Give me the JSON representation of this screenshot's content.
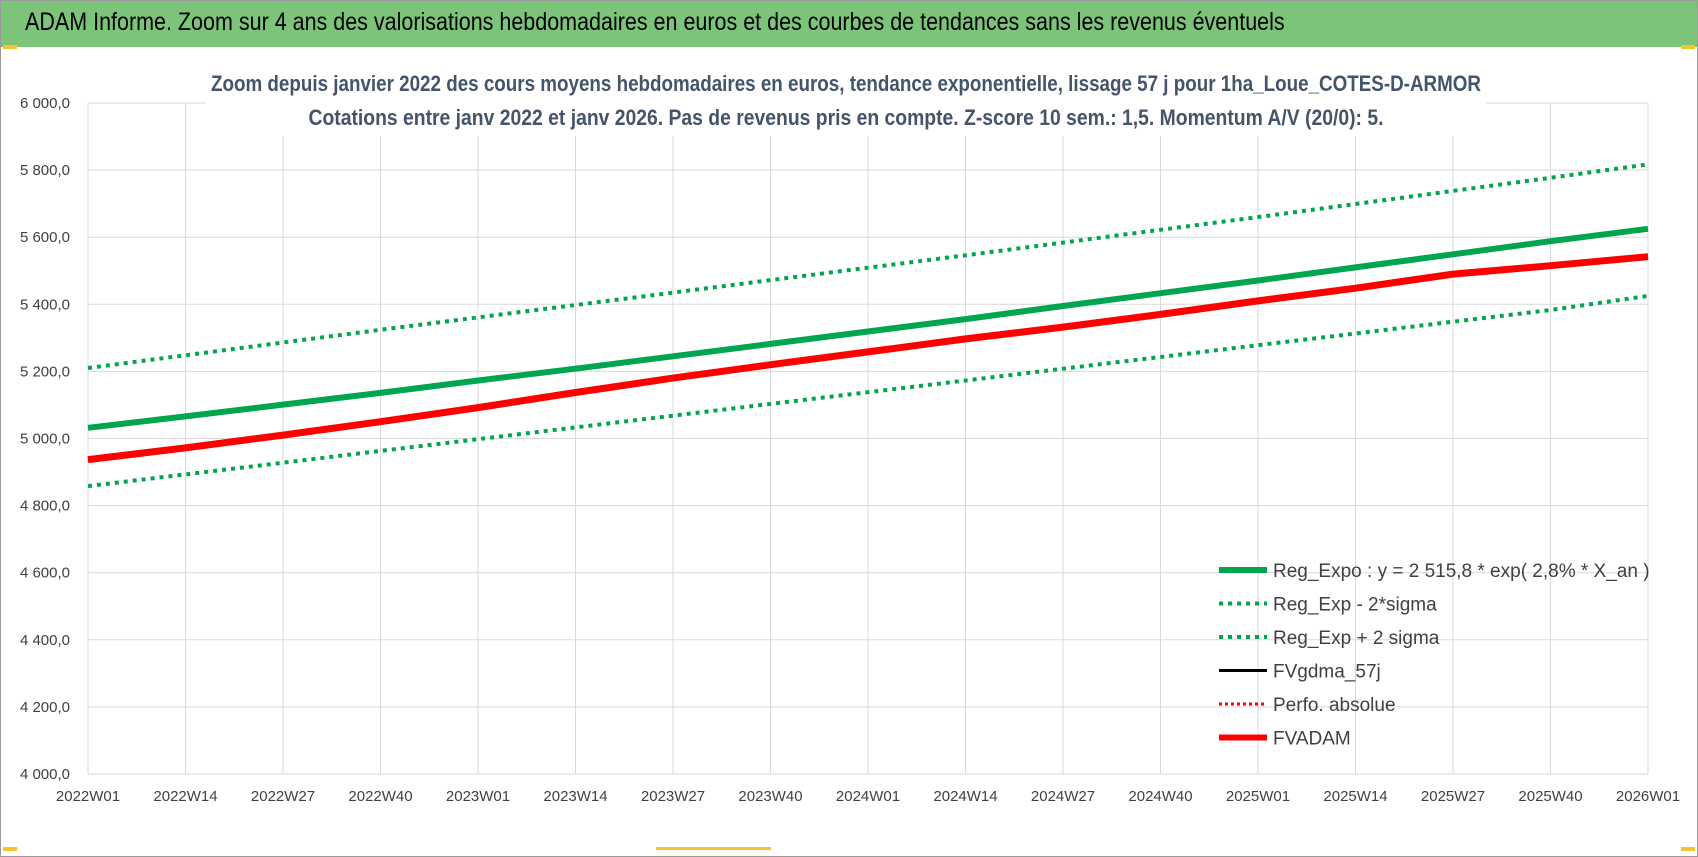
{
  "banner": {
    "title": "ADAM Informe. Zoom sur 4 ans des valorisations hebdomadaires en euros et des courbes de tendances sans les revenus éventuels"
  },
  "colors": {
    "banner_bg": "#7dc47b",
    "title_text": "#44546a",
    "green": "#00a550",
    "red": "#ff0000",
    "black": "#000000",
    "grid": "#d9d9d9"
  },
  "chart_data": {
    "type": "line",
    "title": "Zoom depuis janvier 2022 des cours moyens hebdomadaires en euros, tendance exponentielle, lissage 57 j pour 1ha_Loue_COTES-D-ARMOR",
    "subtitle": "Cotations entre janv 2022 et janv 2026. Pas de revenus pris en compte. Z-score 10 sem.: 1,5. Momentum A/V (20/0): 5.",
    "categories": [
      "2022W01",
      "2022W14",
      "2022W27",
      "2022W40",
      "2023W01",
      "2023W14",
      "2023W27",
      "2023W40",
      "2024W01",
      "2024W14",
      "2024W27",
      "2024W40",
      "2025W01",
      "2025W14",
      "2025W27",
      "2025W40",
      "2026W01"
    ],
    "y_ticks": [
      "4 000,0",
      "4 200,0",
      "4 400,0",
      "4 600,0",
      "4 800,0",
      "5 000,0",
      "5 200,0",
      "5 400,0",
      "5 600,0",
      "5 800,0",
      "6 000,0"
    ],
    "ylim": [
      4000,
      6000
    ],
    "grid": true,
    "legend_position": "bottom-right",
    "series": [
      {
        "name": "Reg_Expo : y = 2 515,8 * exp( 2,8% *  X_an )",
        "color": "#00a550",
        "style": "solid",
        "width": 6,
        "values": [
          5032,
          5066,
          5101,
          5136,
          5173,
          5208,
          5245,
          5282,
          5319,
          5356,
          5395,
          5433,
          5471,
          5510,
          5549,
          5588,
          5625
        ]
      },
      {
        "name": "Reg_Exp - 2*sigma",
        "color": "#00a550",
        "style": "dotted",
        "width": 4,
        "values": [
          4858,
          4893,
          4928,
          4963,
          4998,
          5033,
          5068,
          5103,
          5138,
          5173,
          5208,
          5243,
          5278,
          5313,
          5348,
          5383,
          5425
        ]
      },
      {
        "name": "Reg_Exp + 2 sigma",
        "color": "#00a550",
        "style": "dotted",
        "width": 4,
        "values": [
          5210,
          5248,
          5286,
          5324,
          5361,
          5398,
          5435,
          5472,
          5509,
          5546,
          5584,
          5622,
          5660,
          5699,
          5738,
          5777,
          5817
        ]
      },
      {
        "name": "FVgdma_57j",
        "color": "#000000",
        "style": "solid",
        "width": 3,
        "values": [
          4937,
          4972,
          5010,
          5050,
          5092,
          5137,
          5180,
          5220,
          5258,
          5297,
          5332,
          5370,
          5410,
          5448,
          5490,
          5515,
          5542
        ]
      },
      {
        "name": "Perfo. absolue",
        "color": "#ff0000",
        "style": "dotted",
        "width": 3,
        "values": [
          4937,
          4972,
          5010,
          5050,
          5092,
          5137,
          5180,
          5220,
          5258,
          5297,
          5332,
          5370,
          5410,
          5448,
          5490,
          5515,
          5542
        ]
      },
      {
        "name": "FVADAM",
        "color": "#ff0000",
        "style": "solid",
        "width": 7,
        "values": [
          4937,
          4972,
          5010,
          5050,
          5092,
          5137,
          5180,
          5220,
          5258,
          5297,
          5332,
          5370,
          5410,
          5448,
          5490,
          5515,
          5542
        ]
      }
    ]
  }
}
